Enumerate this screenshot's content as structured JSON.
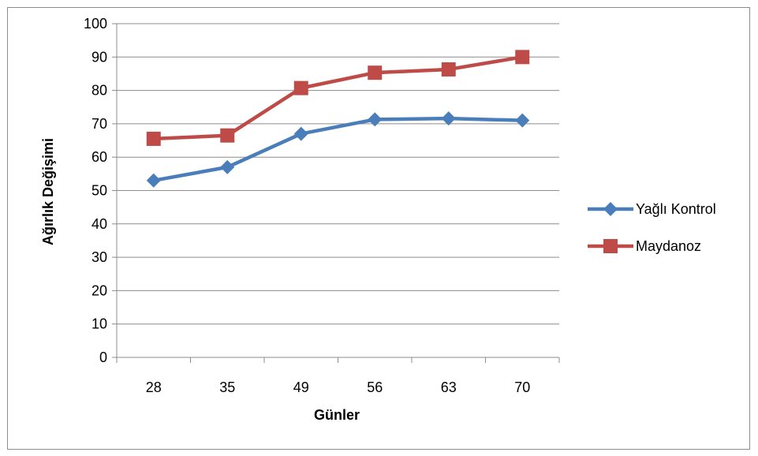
{
  "chart_data": {
    "type": "line",
    "categories": [
      "28",
      "35",
      "49",
      "56",
      "63",
      "70"
    ],
    "series": [
      {
        "name": "Yağlı Kontrol",
        "color": "#4a7ebb",
        "marker": "diamond",
        "values": [
          53,
          57,
          67,
          71.3,
          71.6,
          71
        ]
      },
      {
        "name": "Maydanoz",
        "color": "#be4b48",
        "marker": "square",
        "values": [
          65.5,
          66.5,
          80.7,
          85.3,
          86.3,
          90
        ]
      }
    ],
    "xlabel": "Günler",
    "ylabel": "Ağırlık Değişimi",
    "ylim": [
      0,
      100
    ],
    "yticks": [
      "0",
      "10",
      "20",
      "30",
      "40",
      "50",
      "60",
      "70",
      "80",
      "90",
      "100"
    ],
    "grid": true,
    "legend_position": "right"
  }
}
